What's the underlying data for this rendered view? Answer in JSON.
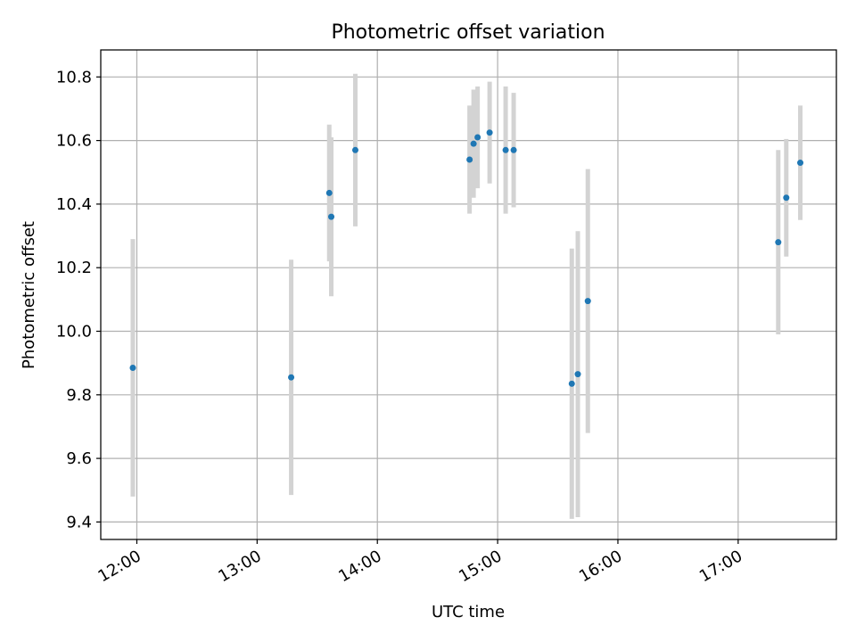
{
  "chart_data": {
    "type": "scatter",
    "title": "Photometric offset variation",
    "xlabel": "UTC time",
    "ylabel": "Photometric offset",
    "x_axis": "time",
    "xlim": [
      "11:42",
      "17:49"
    ],
    "ylim": [
      9.345,
      10.885
    ],
    "x_ticks": [
      "12:00",
      "13:00",
      "14:00",
      "15:00",
      "16:00",
      "17:00"
    ],
    "y_ticks": [
      "9.4",
      "9.6",
      "9.8",
      "10.0",
      "10.2",
      "10.4",
      "10.6",
      "10.8"
    ],
    "grid": true,
    "marker_color": "#1f77b4",
    "errorbar_color": "#d3d3d3",
    "points": [
      {
        "time": "11:58",
        "y": 9.885,
        "yerr": 0.405
      },
      {
        "time": "13:17",
        "y": 9.855,
        "yerr": 0.37
      },
      {
        "time": "13:36",
        "y": 10.435,
        "yerr": 0.215
      },
      {
        "time": "13:37",
        "y": 10.36,
        "yerr": 0.25
      },
      {
        "time": "13:49",
        "y": 10.57,
        "yerr": 0.24
      },
      {
        "time": "14:46",
        "y": 10.54,
        "yerr": 0.17
      },
      {
        "time": "14:48",
        "y": 10.59,
        "yerr": 0.17
      },
      {
        "time": "14:50",
        "y": 10.61,
        "yerr": 0.16
      },
      {
        "time": "14:56",
        "y": 10.625,
        "yerr": 0.16
      },
      {
        "time": "15:04",
        "y": 10.57,
        "yerr": 0.2
      },
      {
        "time": "15:08",
        "y": 10.57,
        "yerr": 0.18
      },
      {
        "time": "15:37",
        "y": 9.835,
        "yerr": 0.425
      },
      {
        "time": "15:40",
        "y": 9.865,
        "yerr": 0.45
      },
      {
        "time": "15:45",
        "y": 10.095,
        "yerr": 0.415
      },
      {
        "time": "17:20",
        "y": 10.28,
        "yerr": 0.29
      },
      {
        "time": "17:24",
        "y": 10.42,
        "yerr": 0.185
      },
      {
        "time": "17:31",
        "y": 10.53,
        "yerr": 0.18
      }
    ]
  }
}
